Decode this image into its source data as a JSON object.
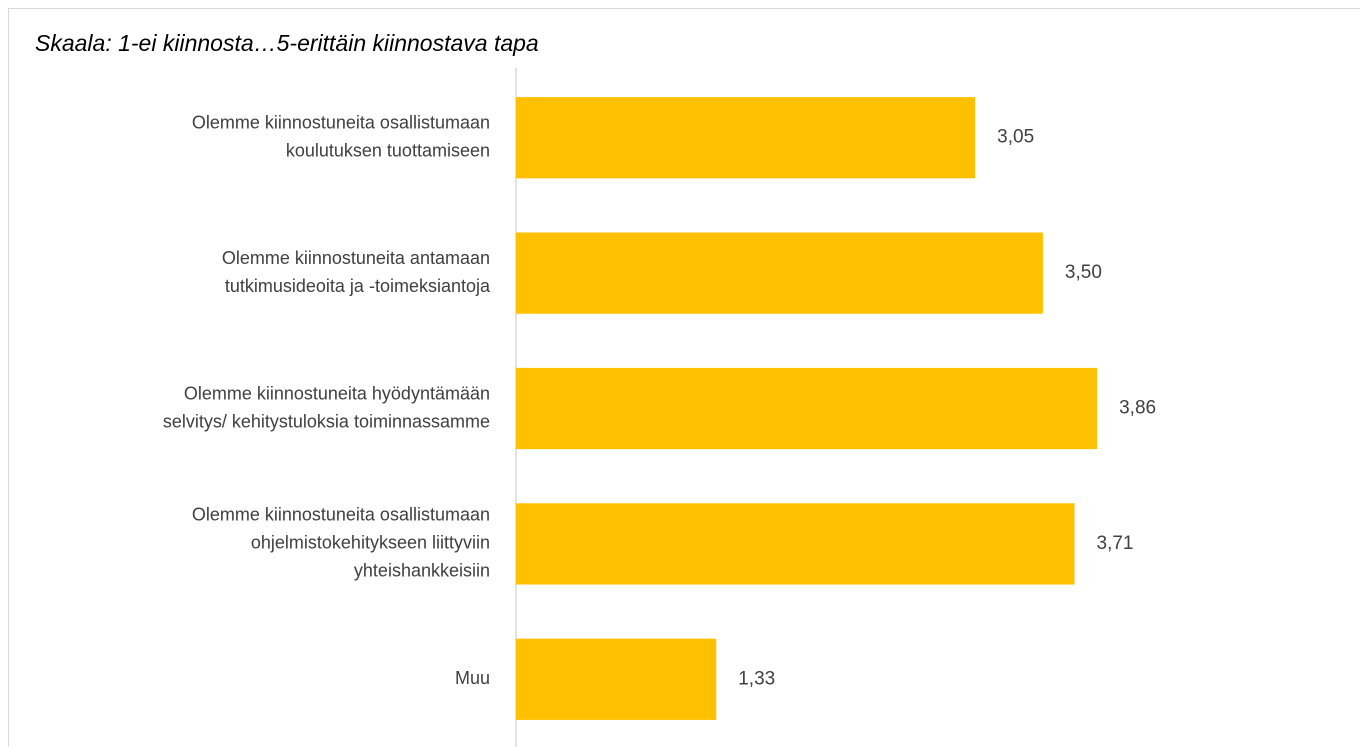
{
  "chart_data": {
    "type": "bar",
    "orientation": "horizontal",
    "title": "Skaala: 1-ei kiinnosta…5-erittäin kiinnostava tapa",
    "categories": [
      [
        "Olemme kiinnostuneita osallistumaan",
        "koulutuksen tuottamiseen"
      ],
      [
        "Olemme kiinnostuneita antamaan",
        "tutkimusideoita ja -toimeksiantoja"
      ],
      [
        "Olemme kiinnostuneita hyödyntämään",
        "selvitys/ kehitystuloksia toiminnassamme"
      ],
      [
        "Olemme kiinnostuneita osallistumaan",
        "ohjelmistokehitykseen liittyviin",
        "yhteishankkeisiin"
      ],
      [
        "Muu"
      ]
    ],
    "values": [
      3.05,
      3.5,
      3.86,
      3.71,
      1.33
    ],
    "value_labels": [
      "3,05",
      "3,50",
      "3,86",
      "3,71",
      "1,33"
    ],
    "color": "#ffc000",
    "xlim": [
      0,
      5.5
    ]
  }
}
